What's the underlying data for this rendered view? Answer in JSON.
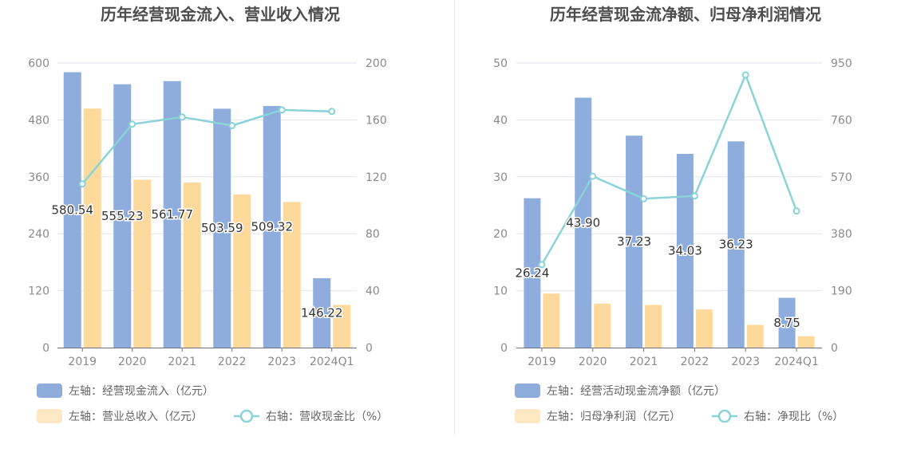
{
  "colors": {
    "bar_primary": "#8eaddc",
    "bar_secondary": "#fdd99b",
    "bar_secondary_legend": "#fde8c3",
    "line": "#8ad3d9",
    "grid": "#e3e6ef",
    "axis_text": "#8a8a8a",
    "title_text": "#4d4d4d",
    "label_text": "#333333"
  },
  "chart_data": [
    {
      "type": "bar",
      "title": "历年经营现金流入、营业收入情况",
      "categories": [
        "2019",
        "2020",
        "2021",
        "2022",
        "2023",
        "2024Q1"
      ],
      "left_axis": {
        "ylim": [
          0,
          600
        ],
        "ticks": [
          "0",
          "120",
          "240",
          "360",
          "480",
          "600"
        ]
      },
      "right_axis": {
        "ylim": [
          0,
          200
        ],
        "ticks": [
          "0",
          "40",
          "80",
          "120",
          "160",
          "200"
        ]
      },
      "grid": true,
      "legend_position": "bottom-left",
      "series": [
        {
          "name": "左轴：经营现金流入（亿元）",
          "kind": "bar",
          "axis": "left",
          "values": [
            580.54,
            555.23,
            561.77,
            503.59,
            509.32,
            146.22
          ],
          "labels": [
            "580.54",
            "555.23",
            "561.77",
            "503.59",
            "509.32",
            "146.22"
          ]
        },
        {
          "name": "左轴：营业总收入（亿元）",
          "kind": "bar",
          "axis": "left",
          "values": [
            504,
            354,
            348,
            323,
            307,
            90
          ]
        },
        {
          "name": "右轴：营收现金比（%）",
          "kind": "line",
          "axis": "right",
          "values": [
            115,
            157,
            162,
            156,
            167,
            166
          ]
        }
      ]
    },
    {
      "type": "bar",
      "title": "历年经营现金流净额、归母净利润情况",
      "categories": [
        "2019",
        "2020",
        "2021",
        "2022",
        "2023",
        "2024Q1"
      ],
      "left_axis": {
        "ylim": [
          0,
          50
        ],
        "ticks": [
          "0",
          "10",
          "20",
          "30",
          "40",
          "50"
        ]
      },
      "right_axis": {
        "ylim": [
          0,
          950
        ],
        "ticks": [
          "0",
          "190",
          "380",
          "570",
          "760",
          "950"
        ]
      },
      "grid": true,
      "legend_position": "bottom-left",
      "series": [
        {
          "name": "左轴：经营活动现金流净额（亿元）",
          "kind": "bar",
          "axis": "left",
          "values": [
            26.24,
            43.9,
            37.23,
            34.03,
            36.23,
            8.75
          ],
          "labels": [
            "26.24",
            "43.90",
            "37.23",
            "34.03",
            "36.23",
            "8.75"
          ]
        },
        {
          "name": "左轴：归母净利润（亿元）",
          "kind": "bar",
          "axis": "left",
          "values": [
            9.5,
            7.7,
            7.5,
            6.7,
            4.0,
            2.0
          ]
        },
        {
          "name": "右轴：净现比（%）",
          "kind": "line",
          "axis": "right",
          "values": [
            277,
            572,
            497,
            506,
            910,
            456
          ]
        }
      ]
    }
  ]
}
